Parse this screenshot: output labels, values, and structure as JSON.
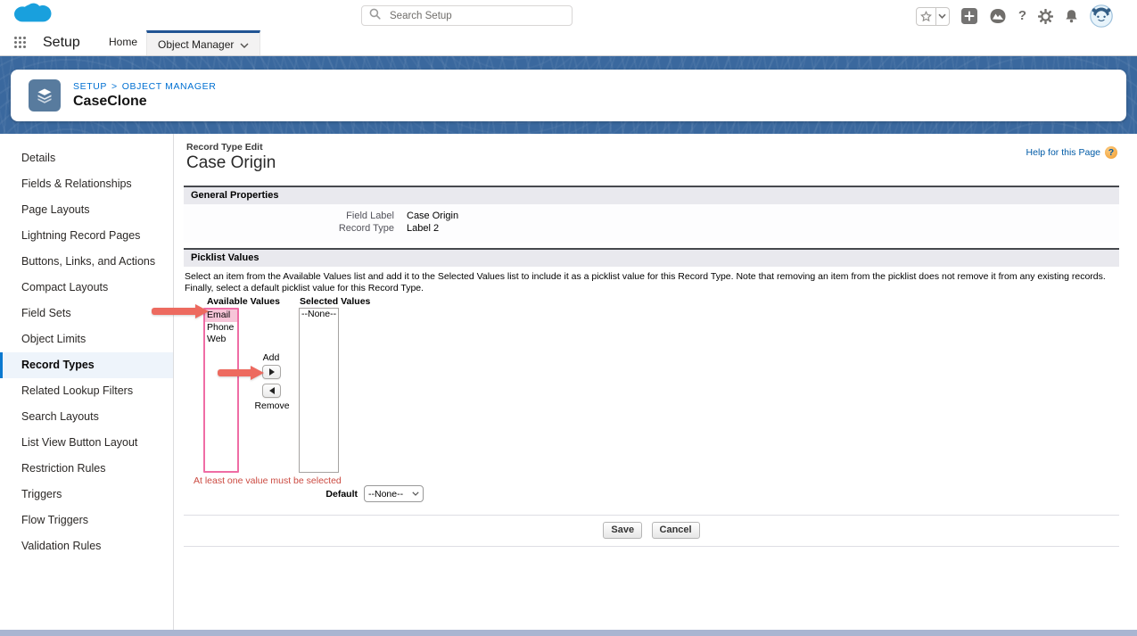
{
  "global_header": {
    "search_placeholder": "Search Setup",
    "icons": [
      "favorites-star-icon",
      "favorites-dropdown-icon",
      "add-icon",
      "trailhead-icon",
      "help-icon",
      "setup-gear-icon",
      "notifications-bell-icon",
      "user-avatar"
    ],
    "help_glyph": "?"
  },
  "nav": {
    "app_label": "Setup",
    "tabs": [
      {
        "label": "Home",
        "active": false
      },
      {
        "label": "Object Manager",
        "active": true
      }
    ]
  },
  "banner": {
    "breadcrumb": [
      "SETUP",
      "OBJECT MANAGER"
    ],
    "breadcrumb_sep": ">",
    "object_name": "CaseClone"
  },
  "sidebar": {
    "items": [
      {
        "label": "Details"
      },
      {
        "label": "Fields & Relationships"
      },
      {
        "label": "Page Layouts"
      },
      {
        "label": "Lightning Record Pages"
      },
      {
        "label": "Buttons, Links, and Actions"
      },
      {
        "label": "Compact Layouts"
      },
      {
        "label": "Field Sets"
      },
      {
        "label": "Object Limits"
      },
      {
        "label": "Record Types",
        "active": true
      },
      {
        "label": "Related Lookup Filters"
      },
      {
        "label": "Search Layouts"
      },
      {
        "label": "List View Button Layout"
      },
      {
        "label": "Restriction Rules"
      },
      {
        "label": "Triggers"
      },
      {
        "label": "Flow Triggers"
      },
      {
        "label": "Validation Rules"
      }
    ]
  },
  "content": {
    "subtitle": "Record Type Edit",
    "title": "Case Origin",
    "help_link": "Help for this Page",
    "general": {
      "title": "General Properties",
      "rows": [
        {
          "label": "Field Label",
          "value": "Case Origin"
        },
        {
          "label": "Record Type",
          "value": "Label 2"
        }
      ]
    },
    "picklist": {
      "title": "Picklist Values",
      "description": "Select an item from the Available Values list and add it to the Selected Values list to include it as a picklist value for this Record Type. Note that removing an item from the picklist does not remove it from any existing records. Finally, select a default picklist value for this Record Type.",
      "available_label": "Available Values",
      "selected_label": "Selected Values",
      "available_options": [
        {
          "label": "Email",
          "selected": true
        },
        {
          "label": "Phone"
        },
        {
          "label": "Web"
        }
      ],
      "selected_options": [
        {
          "label": "--None--"
        }
      ],
      "add_label": "Add",
      "remove_label": "Remove",
      "validation_error": "At least one value must be selected",
      "default_label": "Default",
      "default_value": "--None--"
    },
    "actions": {
      "save": "Save",
      "cancel": "Cancel"
    }
  },
  "colors": {
    "banner_blue": "#3a689e",
    "brand_cloud_blue": "#19a0dd",
    "link_blue": "#0070d2",
    "active_tab_underline": "#215493",
    "sidebar_active_accent": "#0b79d0",
    "error_red": "#cb4a41",
    "annotation_arrow": "#ed6a5f",
    "highlight_pink_border": "#ef6da5",
    "highlight_pink_fill": "#f7c5d8",
    "window_bottom_bar": "#a9b5d1"
  }
}
